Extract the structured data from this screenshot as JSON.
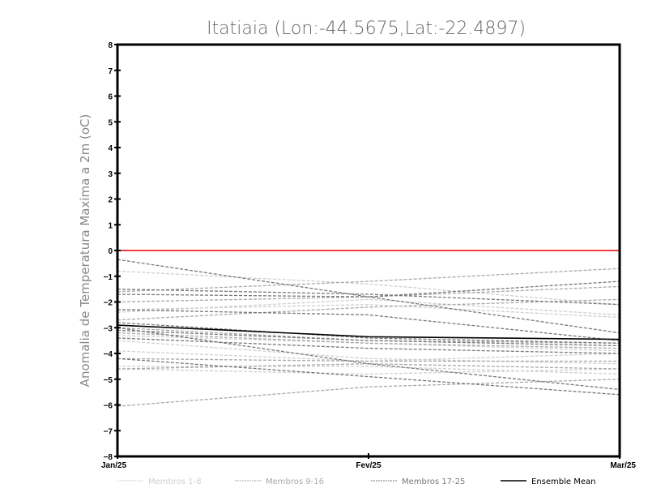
{
  "chart_data": {
    "type": "line",
    "title": "Itatiaia (Lon:-44.5675,Lat:-22.4897)",
    "xlabel": "",
    "ylabel": "Anomalia de Temperatura Maxima a 2m (oC)",
    "x": [
      "Jan/25",
      "Fev/25",
      "Mar/25"
    ],
    "ylim": [
      -8,
      8
    ],
    "yticks": [
      "-8",
      "-7",
      "-6",
      "-5",
      "-4",
      "-3",
      "-2",
      "-1",
      "0",
      "1",
      "2",
      "3",
      "4",
      "5",
      "6",
      "7",
      "8"
    ],
    "grid": false,
    "reference_line": {
      "value": 0,
      "color": "#f03c3c"
    },
    "legend_position": "bottom",
    "groups": [
      {
        "name": "Membros 1-8",
        "color": "#cfcfcf",
        "dashed": true,
        "series": [
          [
            -0.8,
            -1.3,
            -2.1
          ],
          [
            -2.3,
            -2.1,
            -2.6
          ],
          [
            -3.5,
            -4.2,
            -4.4
          ],
          [
            -3.9,
            -4.3,
            -4.0
          ],
          [
            -4.6,
            -4.8,
            -4.6
          ],
          [
            -2.4,
            -1.9,
            -2.5
          ],
          [
            -4.5,
            -4.5,
            -4.8
          ],
          [
            -3.3,
            -3.6,
            -3.9
          ]
        ]
      },
      {
        "name": "Membros 9-16",
        "color": "#a8a8a8",
        "dashed": true,
        "series": [
          [
            -1.6,
            -1.2,
            -0.7
          ],
          [
            -2.0,
            -1.8,
            -1.4
          ],
          [
            -4.2,
            -4.3,
            -4.3
          ],
          [
            -6.05,
            -5.3,
            -5.0
          ],
          [
            -3.0,
            -3.5,
            -3.6
          ],
          [
            -2.7,
            -2.2,
            -1.9
          ],
          [
            -4.6,
            -4.4,
            -4.6
          ],
          [
            -3.2,
            -3.6,
            -3.8
          ]
        ]
      },
      {
        "name": "Membros 17-25",
        "color": "#787878",
        "dashed": true,
        "series": [
          [
            -0.35,
            -1.8,
            -3.2
          ],
          [
            -1.5,
            -1.7,
            -2.1
          ],
          [
            -1.7,
            -1.8,
            -1.2
          ],
          [
            -2.3,
            -2.5,
            -3.5
          ],
          [
            -2.8,
            -3.4,
            -3.6
          ],
          [
            -3.1,
            -3.5,
            -3.7
          ],
          [
            -3.4,
            -3.8,
            -4.0
          ],
          [
            -4.2,
            -4.9,
            -5.6
          ],
          [
            -3.0,
            -4.4,
            -5.4
          ]
        ]
      },
      {
        "name": "Ensemble Mean",
        "color": "#000000",
        "dashed": false,
        "series": [
          [
            -2.9,
            -3.35,
            -3.45
          ]
        ]
      }
    ]
  }
}
